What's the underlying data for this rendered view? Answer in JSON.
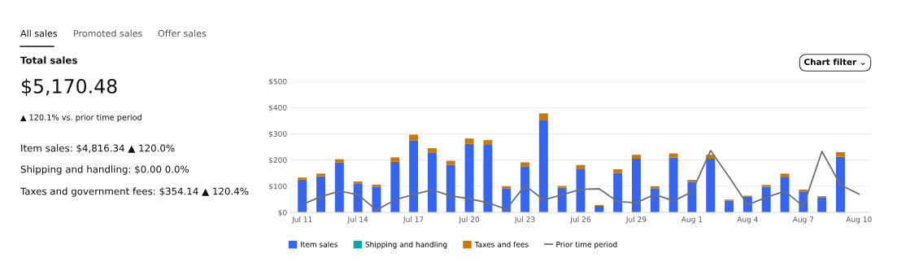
{
  "chart_data": [
    {
      "type": "other",
      "title": "Total sales",
      "annotations": [
        "All sales",
        "Promoted sales",
        "Offer sales",
        "$5,170.48",
        "▲ 120.1% vs. prior time period",
        "Item sales: $4,816.34 ▲ 120.0%",
        "Shipping and handling: $0.00 0.0%",
        "Taxes and government fees: $354.14 ▲ 120.4%"
      ]
    },
    {
      "type": "bar",
      "stacked": true,
      "categories": [
        "Jul 11",
        null,
        null,
        "Jul 14",
        null,
        null,
        "Jul 17",
        null,
        null,
        "Jul 20",
        null,
        null,
        "Jul 23",
        null,
        null,
        "Jul 26",
        null,
        null,
        "Jul 29",
        null,
        null,
        "Aug 1",
        null,
        null,
        "Aug 4",
        null,
        null,
        "Aug 7",
        null,
        null,
        "Aug 10"
      ],
      "series": [
        {
          "name": "Item sales",
          "color": "#3665f3",
          "values": [
            125,
            138,
            190,
            110,
            98,
            193,
            275,
            227,
            182,
            262,
            258,
            92,
            176,
            351,
            94,
            167,
            25,
            151,
            205,
            92,
            209,
            117,
            205,
            45,
            60,
            97,
            136,
            80,
            58,
            212,
            null
          ]
        },
        {
          "name": "Shipping and handling",
          "color": "#0fa5a8",
          "values": [
            0,
            0,
            0,
            0,
            0,
            0,
            0,
            0,
            0,
            0,
            0,
            0,
            0,
            0,
            0,
            0,
            0,
            0,
            0,
            0,
            0,
            0,
            0,
            0,
            0,
            0,
            0,
            0,
            0,
            0,
            null
          ]
        },
        {
          "name": "Taxes and fees",
          "color": "#c87a05",
          "values": [
            8,
            10,
            13,
            8,
            8,
            17,
            22,
            18,
            15,
            20,
            18,
            8,
            15,
            27,
            7,
            14,
            3,
            14,
            15,
            8,
            16,
            7,
            15,
            4,
            4,
            8,
            12,
            7,
            4,
            18,
            null
          ]
        },
        {
          "name": "Prior time period",
          "type": "line",
          "color": "#707070",
          "values": [
            30,
            60,
            81,
            68,
            9,
            48,
            69,
            86,
            63,
            52,
            37,
            12,
            103,
            48,
            67,
            88,
            90,
            41,
            37,
            69,
            44,
            78,
            236,
            135,
            29,
            57,
            81,
            23,
            233,
            105,
            70
          ]
        }
      ],
      "ylim": [
        0,
        500
      ],
      "yticks": [
        {
          "value": 0,
          "label": "$0"
        },
        {
          "value": 100,
          "label": "$100"
        },
        {
          "value": 200,
          "label": "$200"
        },
        {
          "value": 300,
          "label": "$300"
        },
        {
          "value": 400,
          "label": "$400"
        },
        {
          "value": 500,
          "label": "$500"
        }
      ],
      "grid": "y",
      "legend": "bottom",
      "marker": "none",
      "line_style": "solid",
      "annotations": [
        "Chart filter ⌄"
      ]
    }
  ]
}
